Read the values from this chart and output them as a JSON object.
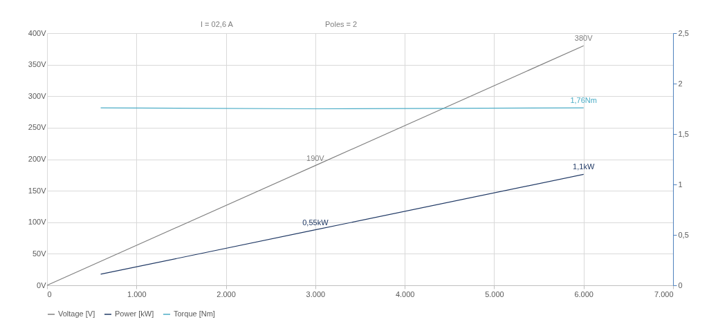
{
  "chart_data": {
    "type": "line",
    "annotations": [
      "I =   02,6 A",
      "Poles =     2"
    ],
    "xlim": [
      0,
      7000
    ],
    "xticks": [
      0,
      {
        "value": 1000,
        "label": "1.000"
      },
      {
        "value": 2000,
        "label": "2.000"
      },
      {
        "value": 3000,
        "label": "3.000"
      },
      {
        "value": 4000,
        "label": "4.000"
      },
      {
        "value": 5000,
        "label": "5.000"
      },
      {
        "value": 6000,
        "label": "6.000"
      },
      {
        "value": 7000,
        "label": "7.000"
      }
    ],
    "ylim": [
      0,
      400
    ],
    "yticks": [
      {
        "value": 0,
        "label": "0V"
      },
      {
        "value": 50,
        "label": "50V"
      },
      {
        "value": 100,
        "label": "100V"
      },
      {
        "value": 150,
        "label": "150V"
      },
      {
        "value": 200,
        "label": "200V"
      },
      {
        "value": 250,
        "label": "250V"
      },
      {
        "value": 300,
        "label": "300V"
      },
      {
        "value": 350,
        "label": "350V"
      },
      {
        "value": 400,
        "label": "400V"
      }
    ],
    "y2lim": [
      0,
      2.5
    ],
    "y2ticks": [
      0,
      {
        "value": 0.5,
        "label": "0,5"
      },
      1,
      {
        "value": 1.5,
        "label": "1,5"
      },
      2,
      {
        "value": 2.5,
        "label": "2,5"
      }
    ],
    "grid": true,
    "legend": "bottom",
    "marker": "none",
    "series": [
      {
        "name": "Voltage [V]",
        "color": "#808080",
        "x": [
          0,
          3000,
          6000
        ],
        "values": [
          0,
          190,
          380
        ],
        "value_labels": [
          null,
          "190V",
          "380V"
        ]
      },
      {
        "name": "Power [kW]",
        "color": "#1f3864",
        "axis": "y2",
        "x": [
          600,
          3000,
          6000
        ],
        "values": [
          0.11,
          0.55,
          1.1
        ],
        "value_labels": [
          null,
          "0,55kW",
          "1,1kW"
        ]
      },
      {
        "name": "Torque [Nm]",
        "color": "#4bacc6",
        "axis": "y2",
        "x": [
          600,
          3000,
          6000
        ],
        "values": [
          1.76,
          1.75,
          1.76
        ],
        "value_labels": [
          null,
          null,
          "1,76Nm"
        ]
      }
    ]
  }
}
